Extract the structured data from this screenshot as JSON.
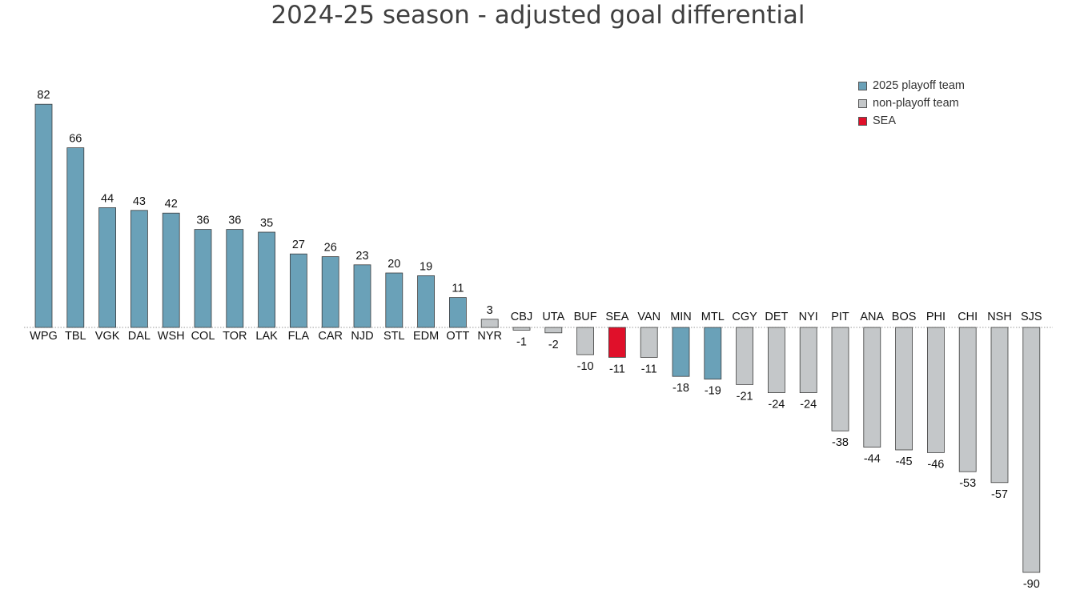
{
  "title": "2024-25 season - adjusted goal differential",
  "legend": [
    {
      "label": "2025 playoff team",
      "color": "#6aa1b8"
    },
    {
      "label": "non-playoff team",
      "color": "#c4c7c9"
    },
    {
      "label": "SEA",
      "color": "#e0102a"
    }
  ],
  "chart_data": {
    "type": "bar",
    "title": "2024-25 season - adjusted goal differential",
    "xlabel": "",
    "ylabel": "",
    "legend_position": "top-right",
    "grid": false,
    "ylim": [
      -90,
      82
    ],
    "categories": [
      "WPG",
      "TBL",
      "VGK",
      "DAL",
      "WSH",
      "COL",
      "TOR",
      "LAK",
      "FLA",
      "CAR",
      "NJD",
      "STL",
      "EDM",
      "OTT",
      "NYR",
      "CBJ",
      "UTA",
      "BUF",
      "SEA",
      "VAN",
      "MIN",
      "MTL",
      "CGY",
      "DET",
      "NYI",
      "PIT",
      "ANA",
      "BOS",
      "PHI",
      "CHI",
      "NSH",
      "SJS"
    ],
    "values": [
      82,
      66,
      44,
      43,
      42,
      36,
      36,
      35,
      27,
      26,
      23,
      20,
      19,
      11,
      3,
      -1,
      -2,
      -10,
      -11,
      -11,
      -18,
      -19,
      -21,
      -24,
      -24,
      -38,
      -44,
      -45,
      -46,
      -53,
      -57,
      -90
    ],
    "groups": [
      "2025 playoff team",
      "2025 playoff team",
      "2025 playoff team",
      "2025 playoff team",
      "2025 playoff team",
      "2025 playoff team",
      "2025 playoff team",
      "2025 playoff team",
      "2025 playoff team",
      "2025 playoff team",
      "2025 playoff team",
      "2025 playoff team",
      "2025 playoff team",
      "2025 playoff team",
      "non-playoff team",
      "non-playoff team",
      "non-playoff team",
      "non-playoff team",
      "SEA",
      "non-playoff team",
      "2025 playoff team",
      "2025 playoff team",
      "non-playoff team",
      "non-playoff team",
      "non-playoff team",
      "non-playoff team",
      "non-playoff team",
      "non-playoff team",
      "non-playoff team",
      "non-playoff team",
      "non-playoff team",
      "non-playoff team"
    ]
  }
}
